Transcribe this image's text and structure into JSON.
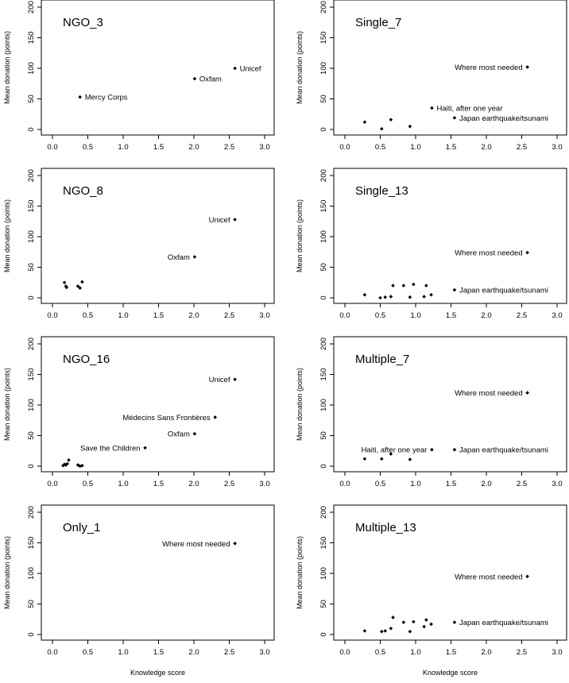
{
  "figure": {
    "xlabel": "Knowledge score",
    "ylabel": "Mean donation (points)"
  },
  "chart_data": [
    {
      "type": "scatter",
      "title": "NGO_3",
      "xlim": [
        0,
        3
      ],
      "ylim": [
        0,
        200
      ],
      "xticks": [
        "0.0",
        "0.5",
        "1.0",
        "1.5",
        "2.0",
        "2.5",
        "3.0"
      ],
      "yticks": [
        "0",
        "50",
        "100",
        "150",
        "200"
      ],
      "points": [
        {
          "x": 0.39,
          "y": 53,
          "label": "Mercy Corps",
          "anchor": "start"
        },
        {
          "x": 2.01,
          "y": 83,
          "label": "Oxfam",
          "anchor": "start"
        },
        {
          "x": 2.58,
          "y": 100,
          "label": "Unicef",
          "anchor": "start"
        }
      ]
    },
    {
      "type": "scatter",
      "title": "Single_7",
      "xlim": [
        0,
        3
      ],
      "ylim": [
        0,
        200
      ],
      "xticks": [
        "0.0",
        "0.5",
        "1.0",
        "1.5",
        "2.0",
        "2.5",
        "3.0"
      ],
      "yticks": [
        "0",
        "50",
        "100",
        "150",
        "200"
      ],
      "points": [
        {
          "x": 0.28,
          "y": 12
        },
        {
          "x": 0.52,
          "y": 1
        },
        {
          "x": 0.65,
          "y": 16
        },
        {
          "x": 0.92,
          "y": 5
        },
        {
          "x": 1.23,
          "y": 35,
          "label": "Haiti, after one year",
          "anchor": "start"
        },
        {
          "x": 1.55,
          "y": 19,
          "label": "Japan earthquake/tsunami",
          "anchor": "start"
        },
        {
          "x": 2.58,
          "y": 102,
          "label": "Where most needed",
          "anchor": "end"
        }
      ]
    },
    {
      "type": "scatter",
      "title": "NGO_8",
      "xlim": [
        0,
        3
      ],
      "ylim": [
        0,
        200
      ],
      "xticks": [
        "0.0",
        "0.5",
        "1.0",
        "1.5",
        "2.0",
        "2.5",
        "3.0"
      ],
      "yticks": [
        "0",
        "50",
        "100",
        "150",
        "200"
      ],
      "points": [
        {
          "x": 0.17,
          "y": 25
        },
        {
          "x": 0.19,
          "y": 19
        },
        {
          "x": 0.2,
          "y": 17
        },
        {
          "x": 0.36,
          "y": 19
        },
        {
          "x": 0.39,
          "y": 16
        },
        {
          "x": 0.42,
          "y": 26
        },
        {
          "x": 2.01,
          "y": 67,
          "label": "Oxfam",
          "anchor": "end"
        },
        {
          "x": 2.58,
          "y": 128,
          "label": "Unicef",
          "anchor": "end"
        }
      ]
    },
    {
      "type": "scatter",
      "title": "Single_13",
      "xlim": [
        0,
        3
      ],
      "ylim": [
        0,
        200
      ],
      "xticks": [
        "0.0",
        "0.5",
        "1.0",
        "1.5",
        "2.0",
        "2.5",
        "3.0"
      ],
      "yticks": [
        "0",
        "50",
        "100",
        "150",
        "200"
      ],
      "points": [
        {
          "x": 0.28,
          "y": 5
        },
        {
          "x": 0.5,
          "y": 0
        },
        {
          "x": 0.57,
          "y": 1
        },
        {
          "x": 0.65,
          "y": 2
        },
        {
          "x": 0.68,
          "y": 20
        },
        {
          "x": 0.83,
          "y": 20
        },
        {
          "x": 0.92,
          "y": 1
        },
        {
          "x": 0.97,
          "y": 22
        },
        {
          "x": 1.12,
          "y": 2
        },
        {
          "x": 1.15,
          "y": 20
        },
        {
          "x": 1.22,
          "y": 5
        },
        {
          "x": 1.55,
          "y": 13,
          "label": "Japan earthquake/tsunami",
          "anchor": "start"
        },
        {
          "x": 2.58,
          "y": 74,
          "label": "Where most needed",
          "anchor": "end"
        }
      ]
    },
    {
      "type": "scatter",
      "title": "NGO_16",
      "xlim": [
        0,
        3
      ],
      "ylim": [
        0,
        200
      ],
      "xticks": [
        "0.0",
        "0.5",
        "1.0",
        "1.5",
        "2.0",
        "2.5",
        "3.0"
      ],
      "yticks": [
        "0",
        "50",
        "100",
        "150",
        "200"
      ],
      "points": [
        {
          "x": 0.15,
          "y": 1
        },
        {
          "x": 0.17,
          "y": 3
        },
        {
          "x": 0.19,
          "y": 2
        },
        {
          "x": 0.21,
          "y": 4
        },
        {
          "x": 0.23,
          "y": 10
        },
        {
          "x": 0.36,
          "y": 2
        },
        {
          "x": 0.39,
          "y": 0
        },
        {
          "x": 0.42,
          "y": 1
        },
        {
          "x": 1.31,
          "y": 30,
          "label": "Save the Children",
          "anchor": "end"
        },
        {
          "x": 2.01,
          "y": 53,
          "label": "Oxfam",
          "anchor": "end"
        },
        {
          "x": 2.3,
          "y": 80,
          "label": "Médecins Sans Frontières",
          "anchor": "end"
        },
        {
          "x": 2.58,
          "y": 142,
          "label": "Unicef",
          "anchor": "end"
        }
      ]
    },
    {
      "type": "scatter",
      "title": "Multiple_7",
      "xlim": [
        0,
        3
      ],
      "ylim": [
        0,
        200
      ],
      "xticks": [
        "0.0",
        "0.5",
        "1.0",
        "1.5",
        "2.0",
        "2.5",
        "3.0"
      ],
      "yticks": [
        "0",
        "50",
        "100",
        "150",
        "200"
      ],
      "points": [
        {
          "x": 0.28,
          "y": 12
        },
        {
          "x": 0.52,
          "y": 12
        },
        {
          "x": 0.65,
          "y": 20
        },
        {
          "x": 0.92,
          "y": 11
        },
        {
          "x": 1.23,
          "y": 27,
          "label": "Haiti, after one year",
          "anchor": "end"
        },
        {
          "x": 1.55,
          "y": 27,
          "label": "Japan earthquake/tsunami",
          "anchor": "start"
        },
        {
          "x": 2.58,
          "y": 120,
          "label": "Where most needed",
          "anchor": "end"
        }
      ]
    },
    {
      "type": "scatter",
      "title": "Only_1",
      "xlim": [
        0,
        3
      ],
      "ylim": [
        0,
        200
      ],
      "xticks": [
        "0.0",
        "0.5",
        "1.0",
        "1.5",
        "2.0",
        "2.5",
        "3.0"
      ],
      "yticks": [
        "0",
        "50",
        "100",
        "150",
        "200"
      ],
      "points": [
        {
          "x": 2.58,
          "y": 149,
          "label": "Where most needed",
          "anchor": "end"
        }
      ]
    },
    {
      "type": "scatter",
      "title": "Multiple_13",
      "xlim": [
        0,
        3
      ],
      "ylim": [
        0,
        200
      ],
      "xticks": [
        "0.0",
        "0.5",
        "1.0",
        "1.5",
        "2.0",
        "2.5",
        "3.0"
      ],
      "yticks": [
        "0",
        "50",
        "100",
        "150",
        "200"
      ],
      "points": [
        {
          "x": 0.28,
          "y": 6
        },
        {
          "x": 0.52,
          "y": 5
        },
        {
          "x": 0.57,
          "y": 6
        },
        {
          "x": 0.65,
          "y": 10
        },
        {
          "x": 0.68,
          "y": 28
        },
        {
          "x": 0.83,
          "y": 20
        },
        {
          "x": 0.92,
          "y": 5
        },
        {
          "x": 0.97,
          "y": 21
        },
        {
          "x": 1.12,
          "y": 13
        },
        {
          "x": 1.15,
          "y": 24
        },
        {
          "x": 1.22,
          "y": 17
        },
        {
          "x": 1.55,
          "y": 20,
          "label": "Japan earthquake/tsunami",
          "anchor": "start"
        },
        {
          "x": 2.58,
          "y": 95,
          "label": "Where most needed",
          "anchor": "end"
        }
      ]
    }
  ]
}
